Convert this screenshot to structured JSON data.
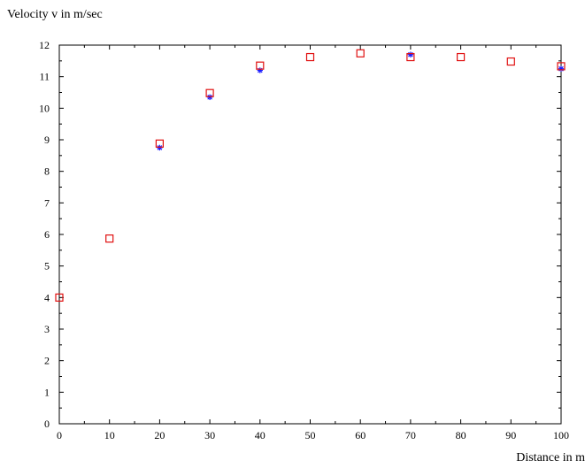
{
  "chart_data": {
    "type": "scatter",
    "title": "",
    "xlabel": "Distance in m",
    "ylabel": "Velocity v in m/sec",
    "xlim": [
      0,
      100
    ],
    "ylim": [
      0,
      12
    ],
    "x_ticks": [
      0,
      10,
      20,
      30,
      40,
      50,
      60,
      70,
      80,
      90,
      100
    ],
    "y_ticks": [
      0,
      1,
      2,
      3,
      4,
      5,
      6,
      7,
      8,
      9,
      10,
      11,
      12
    ],
    "grid": false,
    "legend": "none",
    "series": [
      {
        "marker": "star",
        "color": "#1a1aff",
        "x": [
          20,
          30,
          40,
          70,
          100
        ],
        "y": [
          8.75,
          10.35,
          11.2,
          11.7,
          11.25
        ]
      },
      {
        "marker": "square",
        "color": "#e01010",
        "x": [
          0,
          10,
          20,
          30,
          40,
          50,
          60,
          70,
          80,
          90,
          100
        ],
        "y": [
          4.0,
          5.87,
          8.88,
          10.48,
          11.35,
          11.62,
          11.74,
          11.62,
          11.62,
          11.48,
          11.33
        ]
      }
    ]
  }
}
